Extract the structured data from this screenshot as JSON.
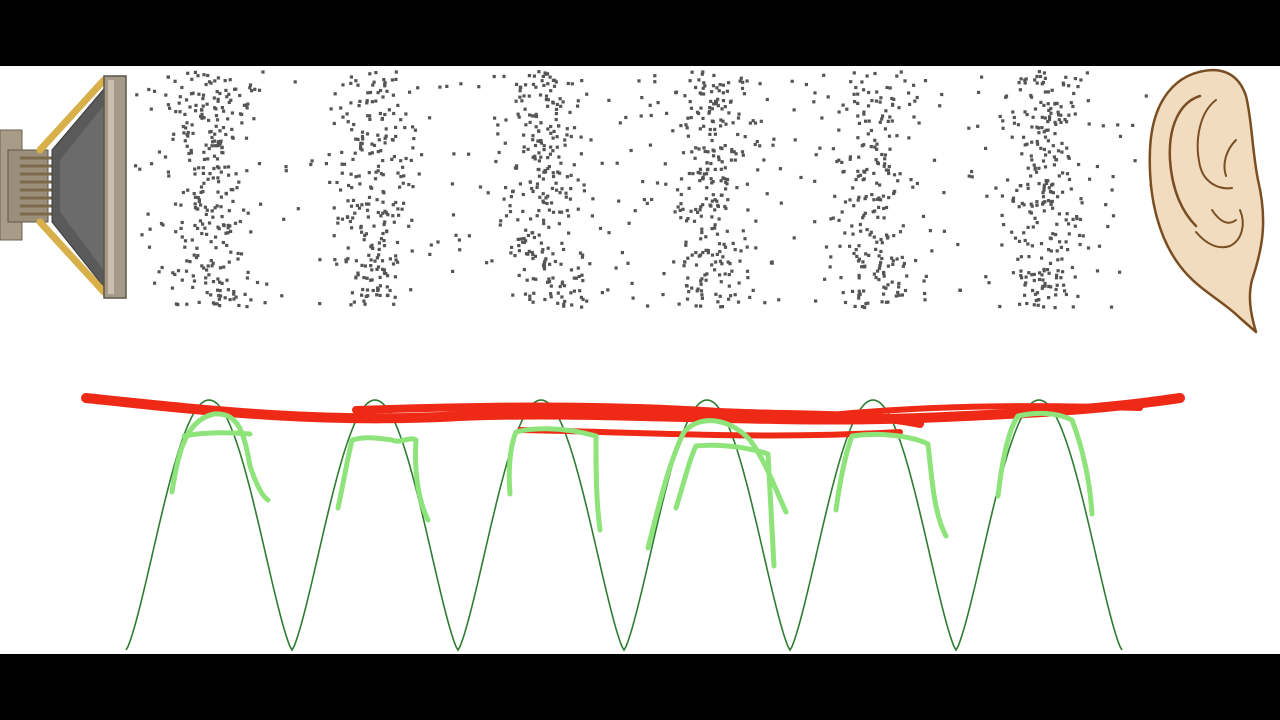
{
  "scene": {
    "colors": {
      "background": "#ffffff",
      "letterbox": "#000000",
      "particle": "#555555",
      "waveform": "#2e7d32",
      "pen_red": "#ee2a17",
      "pen_green": "#8ee37a",
      "speaker_metal": "#8a8070",
      "speaker_brass": "#d8b04a",
      "ear_skin": "#f2dcc0",
      "ear_outline": "#7a4e22"
    },
    "icons": {
      "source": "speaker-icon",
      "receiver": "ear-icon"
    },
    "compressions": 6,
    "wave_cycles": 6
  }
}
